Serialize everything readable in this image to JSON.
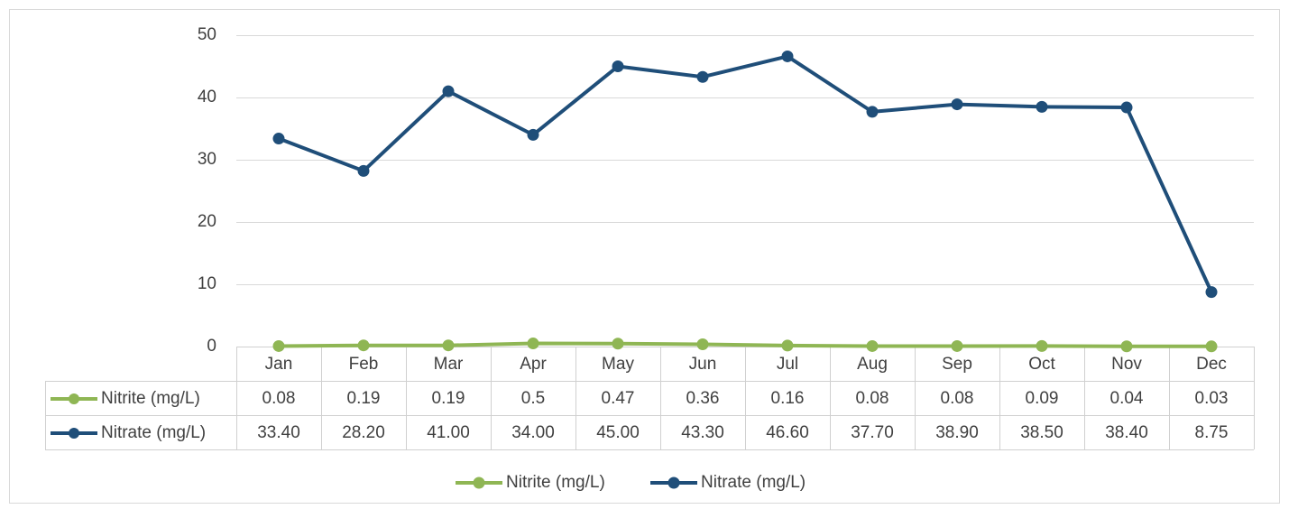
{
  "chart_data": {
    "type": "line",
    "categories": [
      "Jan",
      "Feb",
      "Mar",
      "Apr",
      "May",
      "Jun",
      "Jul",
      "Aug",
      "Sep",
      "Oct",
      "Nov",
      "Dec"
    ],
    "series": [
      {
        "name": "Nitrite (mg/L)",
        "color": "#8fb654",
        "values": [
          0.08,
          0.19,
          0.19,
          0.5,
          0.47,
          0.36,
          0.16,
          0.08,
          0.08,
          0.09,
          0.04,
          0.03
        ]
      },
      {
        "name": "Nitrate (mg/L)",
        "color": "#1f4e79",
        "values": [
          33.4,
          28.2,
          41.0,
          34.0,
          45.0,
          43.3,
          46.6,
          37.7,
          38.9,
          38.5,
          38.4,
          8.75
        ],
        "value_labels": [
          "33.40",
          "28.20",
          "41.00",
          "34.00",
          "45.00",
          "43.30",
          "46.60",
          "37.70",
          "38.90",
          "38.50",
          "38.40",
          "8.75"
        ]
      }
    ],
    "ylim": [
      0,
      50
    ],
    "yticks": [
      0,
      10,
      20,
      30,
      40,
      50
    ],
    "grid": true,
    "legend": "bottom",
    "data_table": true
  }
}
